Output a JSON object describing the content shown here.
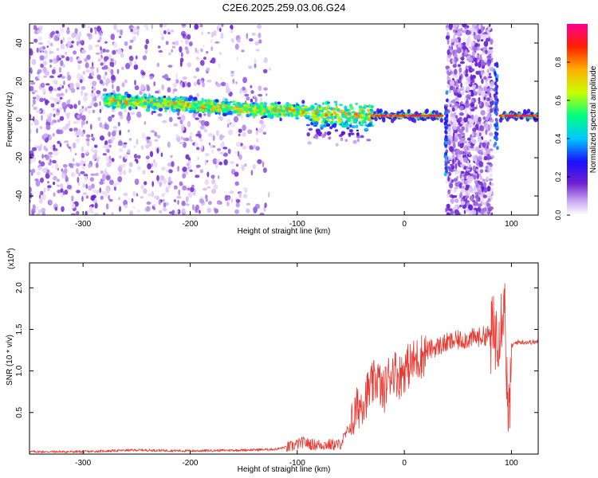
{
  "figure_title": "C2E6.2025.259.03.06.G24",
  "chart_data": [
    {
      "type": "heatmap",
      "xlabel": "Height of straight line (km)",
      "ylabel": "Frequency (Hz)",
      "xlim": [
        -350,
        125
      ],
      "ylim": [
        -50,
        50
      ],
      "x_ticks": [
        -300,
        -200,
        -100,
        0,
        100
      ],
      "y_ticks": [
        -40,
        -20,
        0,
        20,
        40
      ],
      "colorbar": {
        "label": "Normalized spectral amplitude",
        "range": [
          0,
          1
        ],
        "ticks": [
          "0.0",
          "0.2",
          "0.4",
          "0.6",
          "0.8"
        ],
        "colors": [
          "#ffffff",
          "#d6b8f5",
          "#6a1fd0",
          "#1a10ff",
          "#00c8ff",
          "#00ff80",
          "#c8ff00",
          "#ffb000",
          "#ff2000",
          "#ff0090"
        ]
      },
      "features": [
        {
          "name": "main_band",
          "x": [
            -280,
            -30
          ],
          "center_freq": [
            10,
            0
          ],
          "amplitude": [
            0.45,
            0.7
          ]
        },
        {
          "name": "steady_line",
          "x": [
            -30,
            35
          ],
          "center_freq": 2,
          "amplitude": 0.9
        },
        {
          "name": "burst_1",
          "x": [
            40,
            85
          ],
          "freq": [
            -50,
            50
          ],
          "amplitude": 0.25
        },
        {
          "name": "steady_line_2",
          "x": [
            90,
            125
          ],
          "center_freq": 2,
          "amplitude": 0.9
        },
        {
          "name": "noise_region",
          "x": [
            -350,
            -130
          ],
          "freq": [
            -50,
            50
          ],
          "amplitude": 0.2
        }
      ]
    },
    {
      "type": "line",
      "xlabel": "Height of straight line (km)",
      "ylabel": "SNR (10 * v/v)",
      "y_multiplier": "(x10",
      "y_multiplier_exp": "4",
      "xlim": [
        -350,
        125
      ],
      "ylim": [
        0,
        2.3
      ],
      "x_ticks": [
        -300,
        -200,
        -100,
        0,
        100
      ],
      "y_ticks": [
        "0.5",
        "1.0",
        "1.5",
        "2.0"
      ],
      "series_color": "#e83a32",
      "series": [
        {
          "x": [
            -350,
            -300,
            -250,
            -200,
            -150,
            -120,
            -105,
            -95,
            -85,
            -70,
            -60,
            -50,
            -45,
            -40,
            -35,
            -30,
            -25,
            -20,
            -15,
            -10,
            -5,
            0,
            10,
            20,
            30,
            40,
            50,
            60,
            70,
            80,
            85,
            90,
            93,
            95,
            97,
            100,
            105,
            110,
            125
          ],
          "y": [
            0.03,
            0.03,
            0.05,
            0.04,
            0.05,
            0.06,
            0.1,
            0.15,
            0.12,
            0.12,
            0.12,
            0.35,
            0.55,
            0.65,
            0.75,
            0.85,
            0.95,
            0.75,
            0.95,
            1.05,
            0.95,
            1.05,
            1.15,
            1.25,
            1.3,
            1.35,
            1.38,
            1.4,
            1.42,
            1.45,
            1.5,
            1.65,
            2.0,
            1.4,
            0.2,
            1.3,
            1.35,
            1.35,
            1.35
          ]
        }
      ]
    }
  ]
}
